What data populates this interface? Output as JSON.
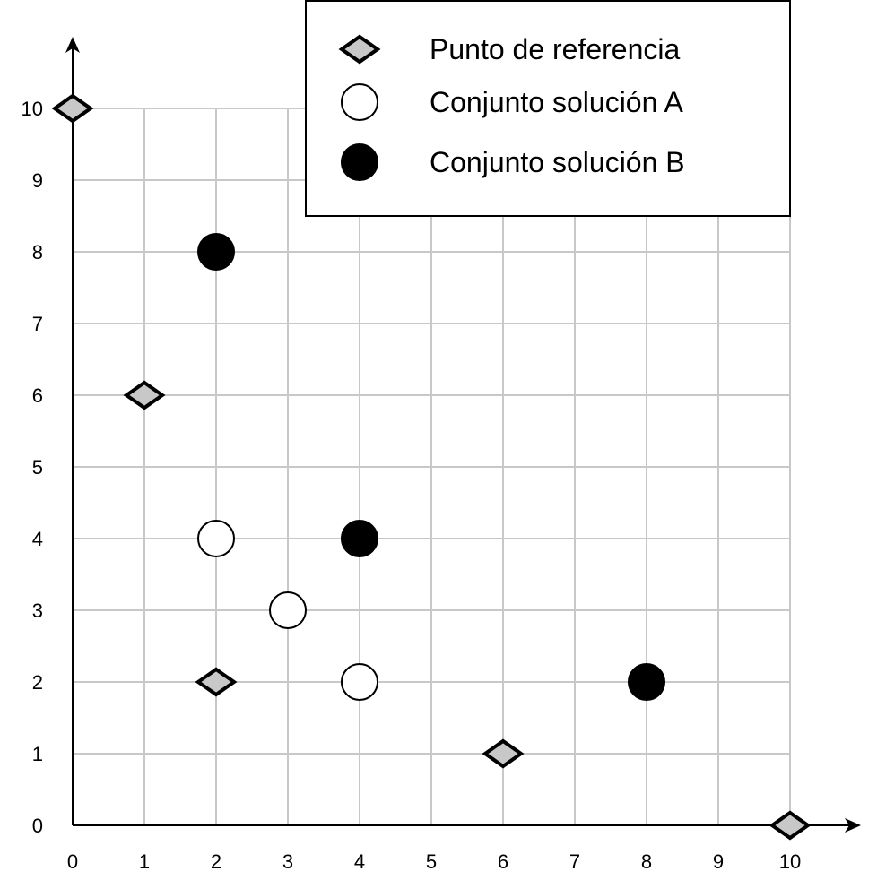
{
  "chart_data": {
    "type": "scatter",
    "title": "",
    "xlabel": "",
    "ylabel": "",
    "xlim": [
      0,
      10
    ],
    "ylim": [
      0,
      10
    ],
    "x_ticks": [
      0,
      1,
      2,
      3,
      4,
      5,
      6,
      7,
      8,
      9,
      10
    ],
    "y_ticks": [
      0,
      1,
      2,
      3,
      4,
      5,
      6,
      7,
      8,
      9,
      10
    ],
    "grid": true,
    "legend_position": "top-right",
    "series": [
      {
        "name": "Punto de referencia",
        "marker": "diamond",
        "fill": "#c8c8c8",
        "stroke": "#000000",
        "points": [
          [
            0,
            10
          ],
          [
            1,
            6
          ],
          [
            2,
            2
          ],
          [
            6,
            1
          ],
          [
            10,
            0
          ]
        ]
      },
      {
        "name": "Conjunto solución A",
        "marker": "circle",
        "fill": "#ffffff",
        "stroke": "#000000",
        "points": [
          [
            2,
            4
          ],
          [
            3,
            3
          ],
          [
            4,
            2
          ]
        ]
      },
      {
        "name": "Conjunto solución B",
        "marker": "circle",
        "fill": "#000000",
        "stroke": "#000000",
        "points": [
          [
            2,
            8
          ],
          [
            4,
            4
          ],
          [
            8,
            2
          ]
        ]
      }
    ]
  }
}
